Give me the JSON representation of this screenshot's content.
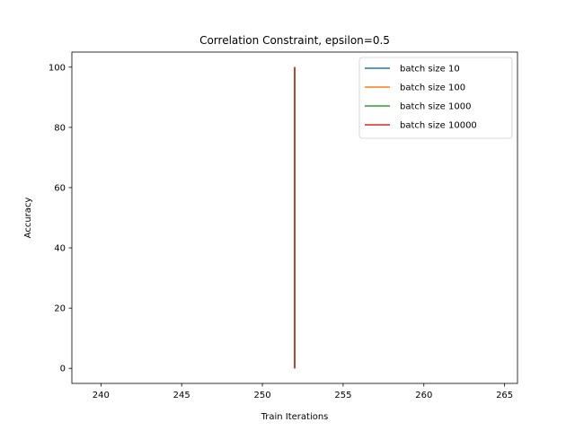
{
  "chart_data": {
    "type": "line",
    "title": "Correlation Constraint, epsilon=0.5",
    "xlabel": "Train Iterations",
    "ylabel": "Accuracy",
    "xlim": [
      238.2,
      265.8
    ],
    "ylim": [
      -5,
      105
    ],
    "xticks": [
      240,
      245,
      250,
      255,
      260,
      265
    ],
    "yticks": [
      0,
      20,
      40,
      60,
      80,
      100
    ],
    "grid": false,
    "legend_position": "top-right",
    "series": [
      {
        "name": "batch size 10",
        "color": "#1f77b4",
        "x": [
          252,
          252
        ],
        "y": [
          0,
          100
        ]
      },
      {
        "name": "batch size 100",
        "color": "#ff7f0e",
        "x": [
          252,
          252
        ],
        "y": [
          0,
          100
        ]
      },
      {
        "name": "batch size 1000",
        "color": "#2ca02c",
        "x": [
          252,
          252
        ],
        "y": [
          0,
          100
        ]
      },
      {
        "name": "batch size 10000",
        "color": "#d62728",
        "x": [
          252,
          252
        ],
        "y": [
          0,
          100
        ]
      }
    ]
  }
}
